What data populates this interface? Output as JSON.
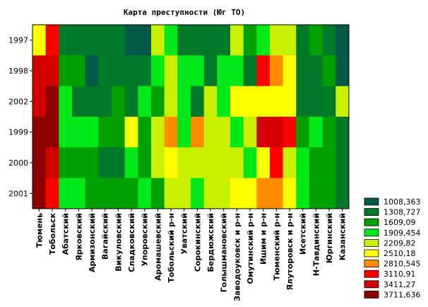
{
  "chart_data": {
    "type": "heatmap",
    "title": "Карта преступности (Юг ТО)",
    "columns": [
      "Тюмень",
      "Тобольск",
      "Абатский",
      "Ярковский",
      "Армизонский",
      "Вагайский",
      "Викуловский",
      "Сладковский",
      "Упоровский",
      "Аромашевский",
      "Тобольский р-н",
      "Уватский",
      "Сорокинский",
      "Бердюжский",
      "Голышмановский",
      "Заводоуковск и р-н",
      "Омутинский р-н",
      "Ишим и р-н",
      "Тюменский р-н",
      "Ялуторовск и р-н",
      "Исетский",
      "Н-Тавдинский",
      "Юргинский",
      "Казанский"
    ],
    "rows": [
      "1997",
      "1998",
      "2002",
      "1999",
      "2000",
      "2001"
    ],
    "legend_levels": [
      "1008,363",
      "1308,727",
      "1609,09",
      "1909,454",
      "2209,82",
      "2510,18",
      "2810,545",
      "3110,91",
      "3411,27",
      "3711,636"
    ],
    "legend_colors": [
      "#005A46",
      "#007A28",
      "#00A000",
      "#00E818",
      "#C8F000",
      "#FFFF00",
      "#FF8C00",
      "#FF0000",
      "#D00000",
      "#8C0000"
    ],
    "levels": [
      [
        5,
        7,
        1,
        1,
        1,
        1,
        1,
        0,
        0,
        4,
        3,
        1,
        1,
        1,
        1,
        4,
        2,
        3,
        4,
        4,
        1,
        2,
        1,
        0
      ],
      [
        8,
        8,
        2,
        2,
        0,
        1,
        1,
        1,
        1,
        3,
        4,
        3,
        3,
        1,
        3,
        3,
        1,
        7,
        6,
        5,
        1,
        1,
        2,
        0
      ],
      [
        8,
        9,
        3,
        1,
        1,
        1,
        2,
        1,
        3,
        2,
        4,
        3,
        1,
        4,
        3,
        5,
        5,
        5,
        5,
        5,
        1,
        1,
        1,
        4
      ],
      [
        9,
        9,
        3,
        3,
        3,
        2,
        2,
        5,
        2,
        4,
        6,
        3,
        6,
        4,
        4,
        3,
        4,
        8,
        8,
        7,
        2,
        3,
        2,
        1
      ],
      [
        9,
        8,
        2,
        2,
        2,
        1,
        1,
        3,
        2,
        4,
        5,
        4,
        4,
        4,
        4,
        4,
        3,
        5,
        7,
        4,
        3,
        2,
        2,
        1
      ],
      [
        9,
        7,
        3,
        3,
        2,
        2,
        2,
        2,
        3,
        2,
        4,
        4,
        3,
        4,
        4,
        5,
        5,
        6,
        6,
        5,
        3,
        2,
        2,
        1
      ]
    ]
  }
}
